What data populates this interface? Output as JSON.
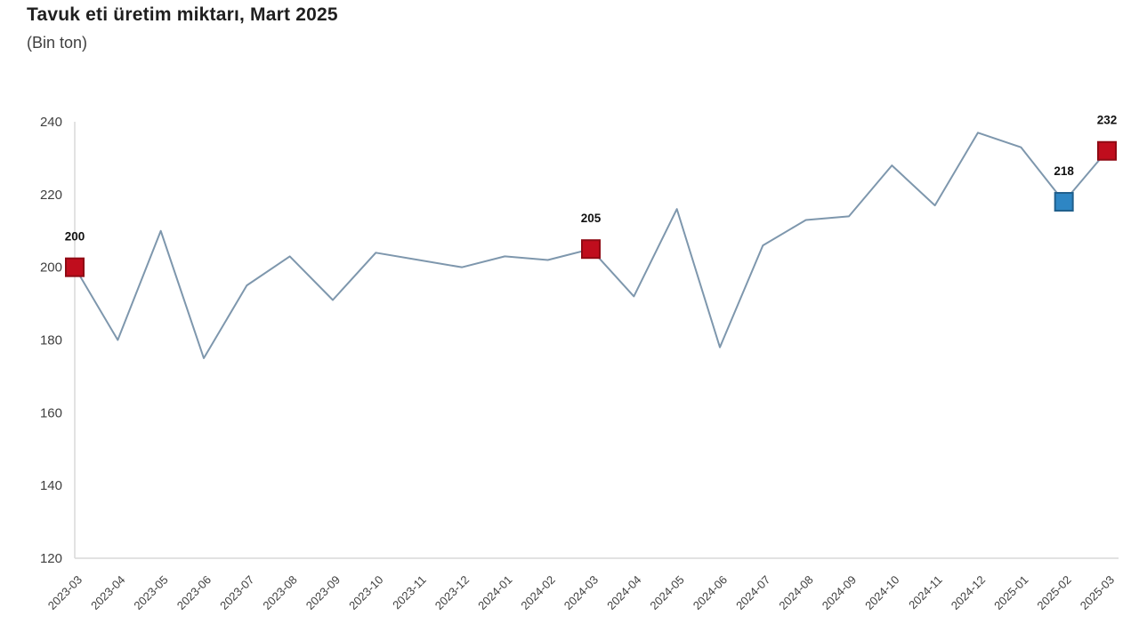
{
  "header": {
    "title": "Tavuk eti üretim miktarı, Mart 2025",
    "subtitle": "(Bin ton)"
  },
  "chart_data": {
    "type": "line",
    "title": "Tavuk eti üretim miktarı, Mart 2025",
    "subtitle": "(Bin ton)",
    "ylabel": "",
    "xlabel": "",
    "unit": "Bin ton",
    "grid": false,
    "legend_position": "none",
    "ylim": [
      120,
      240
    ],
    "yticks": [
      240,
      220,
      200,
      180,
      160,
      140,
      120
    ],
    "categories": [
      "2023-03",
      "2023-04",
      "2023-05",
      "2023-06",
      "2023-07",
      "2023-08",
      "2023-09",
      "2023-10",
      "2023-11",
      "2023-12",
      "2024-01",
      "2024-02",
      "2024-03",
      "2024-04",
      "2024-05",
      "2024-06",
      "2024-07",
      "2024-08",
      "2024-09",
      "2024-10",
      "2024-11",
      "2024-12",
      "2025-01",
      "2025-02",
      "2025-03"
    ],
    "values": [
      200,
      180,
      210,
      175,
      195,
      203,
      191,
      204,
      202,
      200,
      203,
      202,
      205,
      192,
      216,
      178,
      206,
      213,
      214,
      228,
      217,
      237,
      233,
      218,
      232
    ],
    "line_color": "#7e97ad",
    "axis_color": "#d9d9d9",
    "tick_label_color": "#3f3f3f",
    "data_label_color": "#111111",
    "marker_colors": {
      "red": "#c00d1d",
      "red_border": "#8f0a14",
      "blue": "#2e86c4",
      "blue_border": "#205f8c"
    },
    "markers": [
      {
        "index": 0,
        "category": "2023-03",
        "value": 200,
        "label": "200",
        "style": "red"
      },
      {
        "index": 12,
        "category": "2024-03",
        "value": 205,
        "label": "205",
        "style": "red"
      },
      {
        "index": 23,
        "category": "2025-02",
        "value": 218,
        "label": "218",
        "style": "blue"
      },
      {
        "index": 24,
        "category": "2025-03",
        "value": 232,
        "label": "232",
        "style": "red"
      }
    ]
  }
}
